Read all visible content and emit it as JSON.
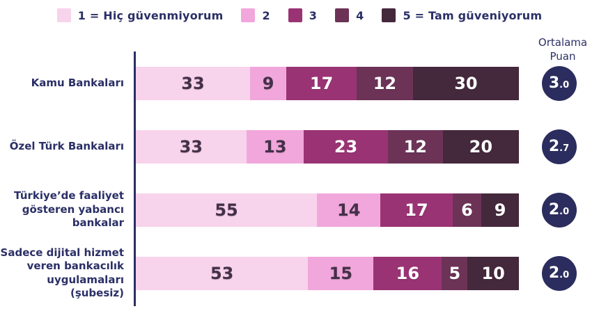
{
  "legend": {
    "items": [
      {
        "label": "1 = Hiç güvenmiyorum",
        "color": "#F8D3EC"
      },
      {
        "label": "2",
        "color": "#F1A7DB"
      },
      {
        "label": "3",
        "color": "#9A3374"
      },
      {
        "label": "4",
        "color": "#6C3357"
      },
      {
        "label": "5 = Tam güveniyorum",
        "color": "#44283C"
      }
    ]
  },
  "score_header": {
    "line1": "Ortalama",
    "line2": "Puan"
  },
  "chart_data": {
    "type": "bar",
    "orientation": "horizontal",
    "stacked": true,
    "unit": "percent",
    "legend": [
      "1 = Hiç güvenmiyorum",
      "2",
      "3",
      "4",
      "5 = Tam güveniyorum"
    ],
    "colors": [
      "#F8D3EC",
      "#F1A7DB",
      "#9A3374",
      "#6C3357",
      "#44283C"
    ],
    "value_text_colors": [
      "#443049",
      "#443049",
      "#FFFFFF",
      "#FFFFFF",
      "#FFFFFF"
    ],
    "accent_navy": "#2B2F66",
    "badge_navy": "#2B2D5E",
    "average_label": "Ortalama Puan",
    "rows": [
      {
        "category": "Kamu Bankaları",
        "values": [
          33,
          9,
          17,
          12,
          30
        ],
        "average": "3.0",
        "average_int": "3",
        "average_dec": ".0"
      },
      {
        "category": "Özel Türk Bankaları",
        "values": [
          33,
          13,
          23,
          12,
          20
        ],
        "average": "2.7",
        "average_int": "2",
        "average_dec": ".7"
      },
      {
        "category": "Türkiye’de faaliyet gösteren yabancı bankalar",
        "values": [
          55,
          14,
          17,
          6,
          9
        ],
        "average": "2.0",
        "average_int": "2",
        "average_dec": ".0"
      },
      {
        "category": "Sadece dijital hizmet veren bankacılık uygulamaları (şubesiz)",
        "values": [
          53,
          15,
          16,
          5,
          10
        ],
        "average": "2.0",
        "average_int": "2",
        "average_dec": ".0"
      }
    ]
  }
}
